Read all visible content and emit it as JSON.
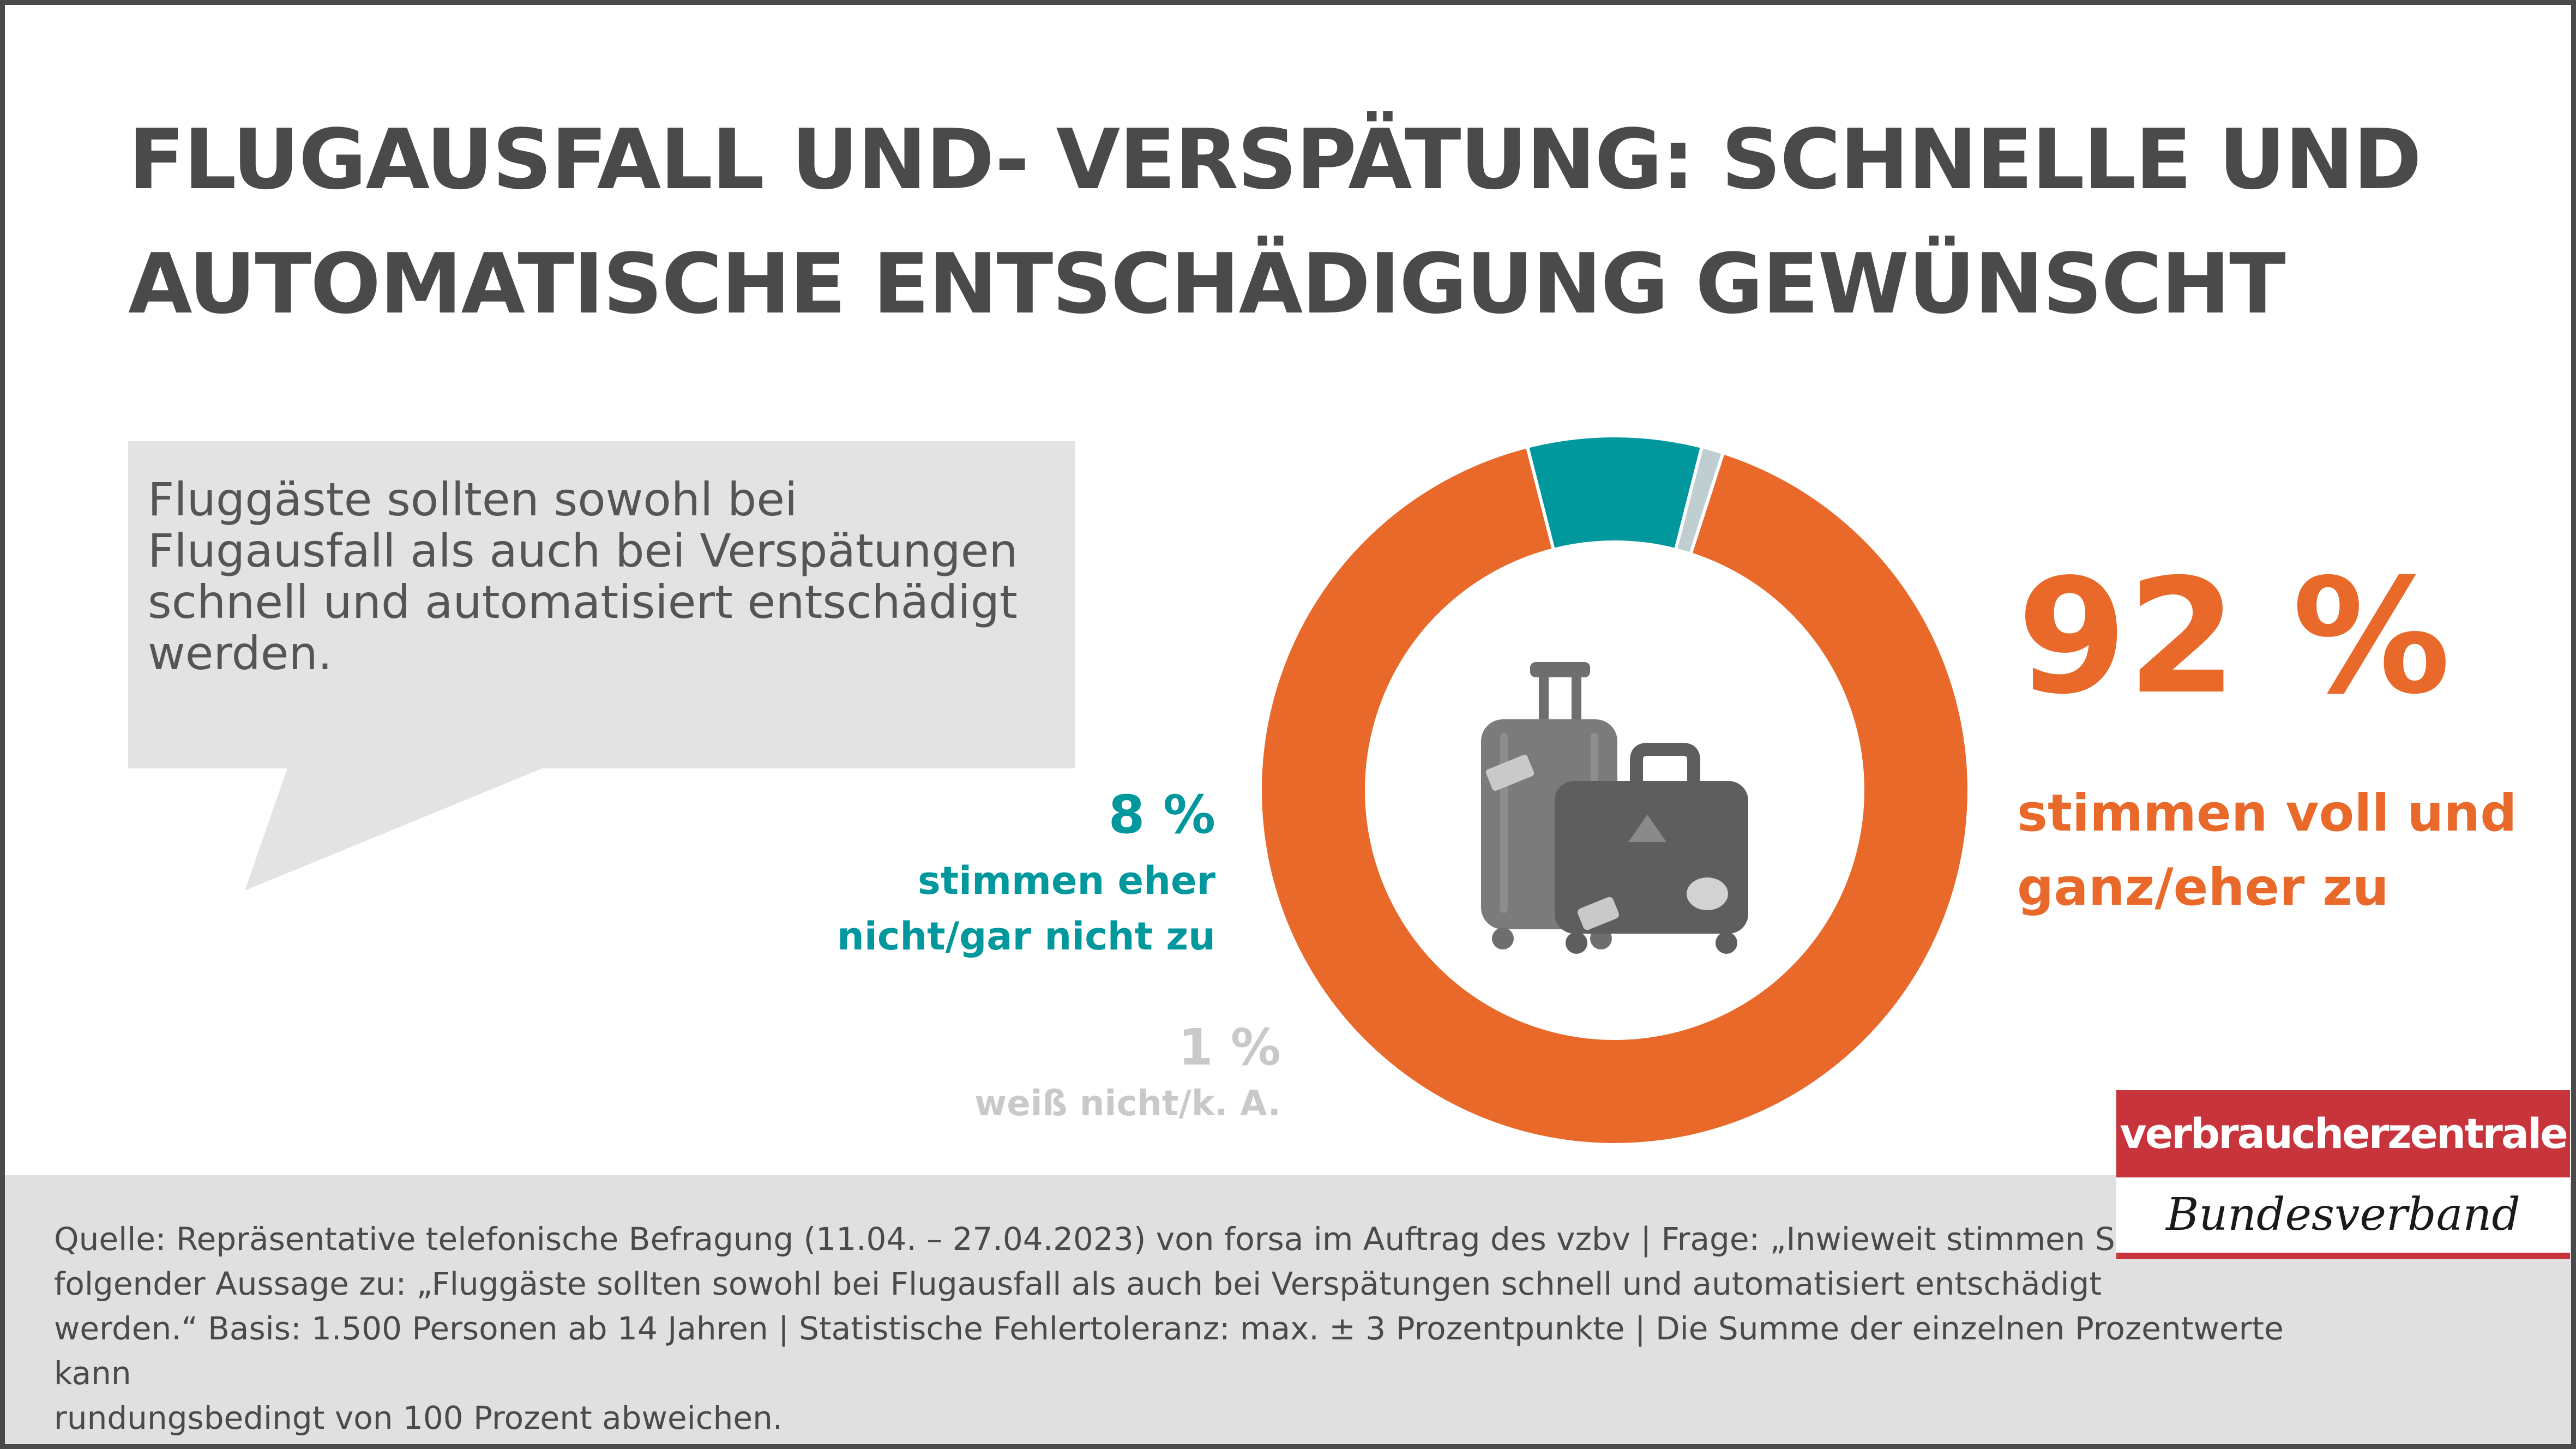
{
  "title": {
    "line1": "FLUGAUSFALL UND- VERSPÄTUNG: SCHNELLE UND",
    "line2": "AUTOMATISCHE ENTSCHÄDIGUNG GEWÜNSCHT"
  },
  "statement": {
    "line1": "Fluggäste sollten sowohl bei",
    "line2": "Flugausfall als auch bei Verspätungen",
    "line3": "schnell und automatisiert entschädigt",
    "line4": "werden."
  },
  "chart_data": {
    "type": "pie",
    "donut": true,
    "unit": "%",
    "categories": [
      "stimmen voll und ganz/eher zu",
      "stimmen eher nicht/gar nicht zu",
      "weiß nicht/k. A."
    ],
    "values": [
      92,
      8,
      1
    ],
    "colors": [
      "#e8692a",
      "#00979d",
      "#bfcfd1"
    ]
  },
  "labels": {
    "agree_value": "92 %",
    "agree_label_line1": "stimmen voll und",
    "agree_label_line2": "ganz/eher zu",
    "disagree_value": "8 %",
    "disagree_label_line1": "stimmen eher",
    "disagree_label_line2": "nicht/gar nicht zu",
    "unknown_value": "1 %",
    "unknown_label": "weiß nicht/k. A."
  },
  "center_icon": "luggage-icon",
  "source": {
    "line1": "Quelle: Repräsentative telefonische Befragung (11.04. – 27.04.2023) von forsa im Auftrag des vzbv | Frage: „Inwieweit stimmen Sie",
    "line2": "folgender Aussage zu: „Fluggäste sollten sowohl bei Flugausfall als auch bei Verspätungen schnell und automatisiert entschädigt",
    "line3": "werden.“ Basis: 1.500 Personen ab 14 Jahren | Statistische Fehlertoleranz: max. ± 3 Prozentpunkte | Die Summe der einzelnen Prozentwerte kann",
    "line4": "rundungsbedingt von 100 Prozent abweichen."
  },
  "logo": {
    "top": "verbraucherzentrale",
    "bottom": "Bundesverband"
  },
  "colors": {
    "accent_orange": "#e8692a",
    "accent_teal": "#00979d",
    "neutral_grey": "#c9c9c9",
    "brand_red": "#c8343c",
    "text_dark": "#4a4a4a"
  }
}
